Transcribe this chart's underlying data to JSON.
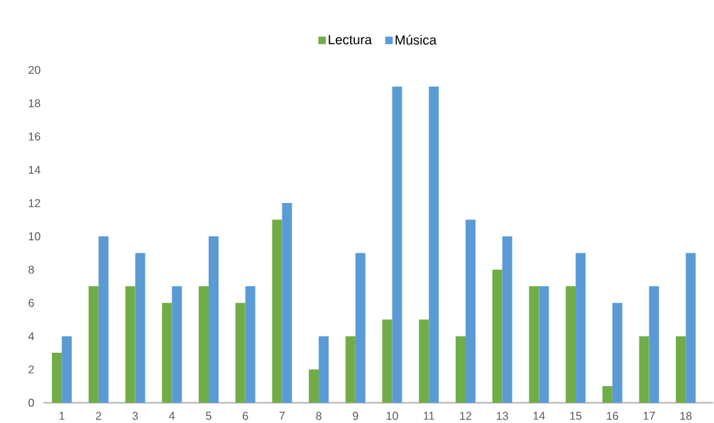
{
  "chart_data": {
    "type": "bar",
    "categories": [
      "1",
      "2",
      "3",
      "4",
      "5",
      "6",
      "7",
      "8",
      "9",
      "10",
      "11",
      "12",
      "13",
      "14",
      "15",
      "16",
      "17",
      "18"
    ],
    "series": [
      {
        "name": "Lectura",
        "color": "#70ad47",
        "values": [
          3,
          7,
          7,
          6,
          7,
          6,
          11,
          2,
          4,
          5,
          5,
          4,
          8,
          7,
          7,
          1,
          4,
          4
        ]
      },
      {
        "name": "Música",
        "color": "#5b9bd5",
        "values": [
          4,
          10,
          9,
          7,
          10,
          7,
          12,
          4,
          9,
          19,
          19,
          11,
          10,
          7,
          9,
          6,
          7,
          9
        ]
      }
    ],
    "ylim": [
      0,
      20
    ],
    "yticks": [
      0,
      2,
      4,
      6,
      8,
      10,
      12,
      14,
      16,
      18,
      20
    ],
    "grid": false,
    "legend": "top"
  }
}
